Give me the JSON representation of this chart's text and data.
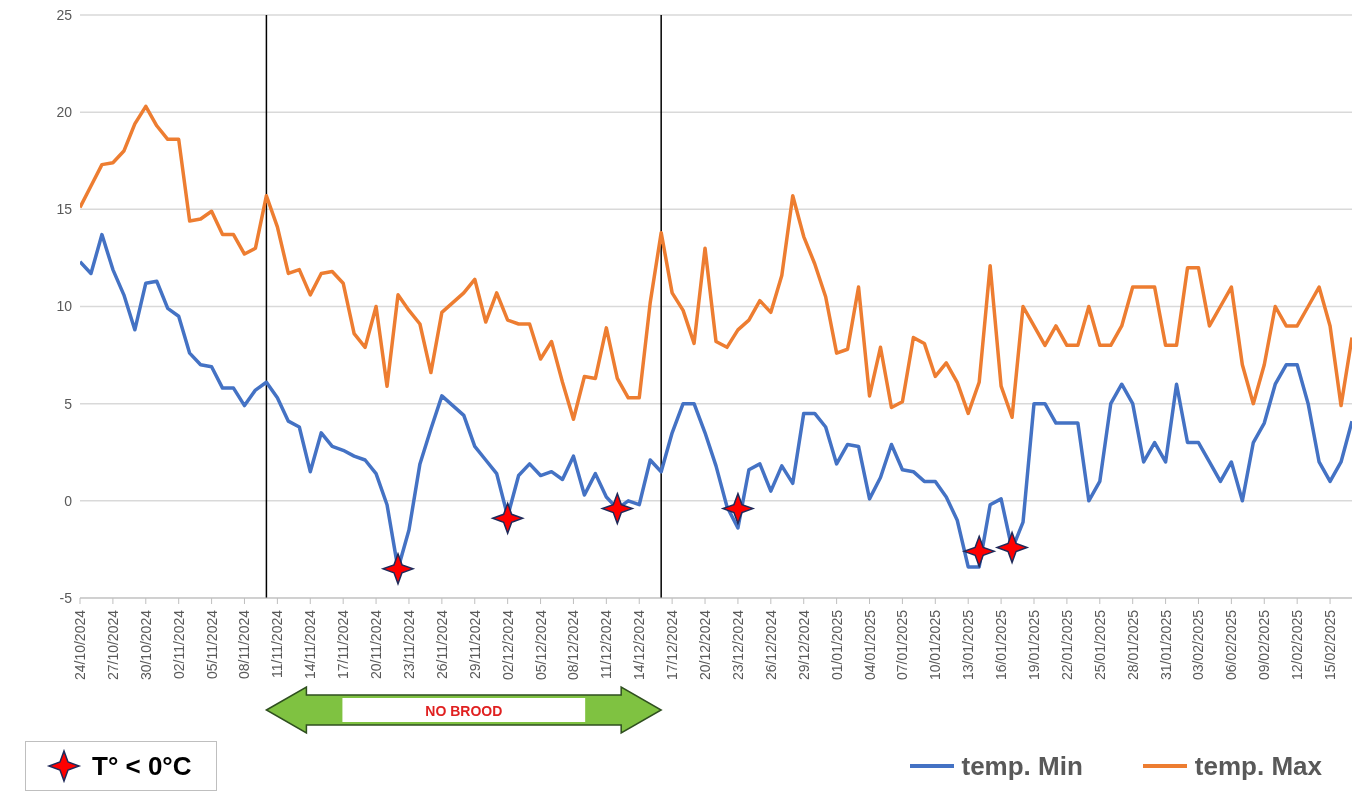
{
  "chart_data": {
    "type": "line",
    "x": [
      "2024-10-24",
      "2024-10-25",
      "2024-10-26",
      "2024-10-27",
      "2024-10-28",
      "2024-10-29",
      "2024-10-30",
      "2024-10-31",
      "2024-11-01",
      "2024-11-02",
      "2024-11-03",
      "2024-11-04",
      "2024-11-05",
      "2024-11-06",
      "2024-11-07",
      "2024-11-08",
      "2024-11-09",
      "2024-11-10",
      "2024-11-11",
      "2024-11-12",
      "2024-11-13",
      "2024-11-14",
      "2024-11-15",
      "2024-11-16",
      "2024-11-17",
      "2024-11-18",
      "2024-11-19",
      "2024-11-20",
      "2024-11-21",
      "2024-11-22",
      "2024-11-23",
      "2024-11-24",
      "2024-11-25",
      "2024-11-26",
      "2024-11-27",
      "2024-11-28",
      "2024-11-29",
      "2024-11-30",
      "2024-12-01",
      "2024-12-02",
      "2024-12-03",
      "2024-12-04",
      "2024-12-05",
      "2024-12-06",
      "2024-12-07",
      "2024-12-08",
      "2024-12-09",
      "2024-12-10",
      "2024-12-11",
      "2024-12-12",
      "2024-12-13",
      "2024-12-14",
      "2024-12-15",
      "2024-12-16",
      "2024-12-17",
      "2024-12-18",
      "2024-12-19",
      "2024-12-20",
      "2024-12-21",
      "2024-12-22",
      "2024-12-23",
      "2024-12-24",
      "2024-12-25",
      "2024-12-26",
      "2024-12-27",
      "2024-12-28",
      "2024-12-29",
      "2024-12-30",
      "2024-12-31",
      "2025-01-01",
      "2025-01-02",
      "2025-01-03",
      "2025-01-04",
      "2025-01-05",
      "2025-01-06",
      "2025-01-07",
      "2025-01-08",
      "2025-01-09",
      "2025-01-10",
      "2025-01-11",
      "2025-01-12",
      "2025-01-13",
      "2025-01-14",
      "2025-01-15",
      "2025-01-16",
      "2025-01-17",
      "2025-01-18",
      "2025-01-19",
      "2025-01-20",
      "2025-01-21",
      "2025-01-22",
      "2025-01-23",
      "2025-01-24",
      "2025-01-25",
      "2025-01-26",
      "2025-01-27",
      "2025-01-28",
      "2025-01-29",
      "2025-01-30",
      "2025-01-31",
      "2025-02-01",
      "2025-02-02",
      "2025-02-03",
      "2025-02-04",
      "2025-02-05",
      "2025-02-06",
      "2025-02-07",
      "2025-02-08",
      "2025-02-09",
      "2025-02-10",
      "2025-02-11",
      "2025-02-12",
      "2025-02-13",
      "2025-02-14",
      "2025-02-15",
      "2025-02-16",
      "2025-02-17"
    ],
    "series": [
      {
        "name": "temp. Min",
        "color": "#4472c4",
        "values": [
          12.3,
          11.7,
          13.7,
          11.9,
          10.6,
          8.8,
          11.2,
          11.3,
          9.9,
          9.5,
          7.6,
          7.0,
          6.9,
          5.8,
          5.8,
          4.9,
          5.7,
          6.1,
          5.3,
          4.1,
          3.8,
          1.5,
          3.5,
          2.8,
          2.6,
          2.3,
          2.1,
          1.4,
          -0.2,
          -3.5,
          -1.5,
          1.9,
          3.7,
          5.4,
          4.9,
          4.4,
          2.8,
          2.1,
          1.4,
          -0.8,
          1.3,
          1.9,
          1.3,
          1.5,
          1.1,
          2.3,
          0.3,
          1.4,
          0.2,
          -0.4,
          0.0,
          -0.2,
          2.1,
          1.5,
          3.5,
          5.0,
          5.0,
          3.5,
          1.8,
          -0.3,
          -1.4,
          1.6,
          1.9,
          0.5,
          1.8,
          0.9,
          4.5,
          4.5,
          3.8,
          1.9,
          2.9,
          2.8,
          0.1,
          1.2,
          2.9,
          1.6,
          1.5,
          1.0,
          1.0,
          0.2,
          -1.0,
          -3.4,
          -3.4,
          -0.2,
          0.1,
          -2.5,
          -1.1,
          5,
          5,
          4,
          4,
          4,
          0,
          1,
          5,
          6,
          5,
          2,
          3,
          2,
          6,
          3,
          3,
          2,
          1,
          2,
          0,
          3,
          4,
          6,
          7,
          7,
          5,
          2,
          1,
          2,
          4.1
        ]
      },
      {
        "name": "temp. Max",
        "color": "#ed7d31",
        "values": [
          15.1,
          16.2,
          17.3,
          17.4,
          18.0,
          19.4,
          20.3,
          19.3,
          18.6,
          18.6,
          14.4,
          14.5,
          14.9,
          13.7,
          13.7,
          12.7,
          13.0,
          15.7,
          14.1,
          11.7,
          11.9,
          10.6,
          11.7,
          11.8,
          11.2,
          8.6,
          7.9,
          10.0,
          5.9,
          10.6,
          9.8,
          9.1,
          6.6,
          9.7,
          10.2,
          10.7,
          11.4,
          9.2,
          10.7,
          9.3,
          9.1,
          9.1,
          7.3,
          8.2,
          6.1,
          4.2,
          6.4,
          6.3,
          8.9,
          6.3,
          5.3,
          5.3,
          10.2,
          13.8,
          10.7,
          9.8,
          8.1,
          13.0,
          8.2,
          7.9,
          8.8,
          9.3,
          10.3,
          9.7,
          11.6,
          15.7,
          13.6,
          12.2,
          10.5,
          7.6,
          7.8,
          11.0,
          5.4,
          7.9,
          4.8,
          5.1,
          8.4,
          8.1,
          6.4,
          7.1,
          6.1,
          4.5,
          6.1,
          12.1,
          5.9,
          4.3,
          10,
          9,
          8,
          9,
          8,
          8,
          10,
          8,
          8,
          9,
          11,
          11,
          11,
          8,
          8,
          12,
          12,
          9,
          10,
          11,
          7,
          5,
          7,
          10,
          9,
          9,
          10,
          11,
          9,
          4.9,
          8.4
        ]
      },
      {
        "name": "T° < 0°C",
        "type": "scatter",
        "marker": "star",
        "color": "#ff0000",
        "x": [
          "2024-11-22",
          "2024-12-02",
          "2024-12-12",
          "2024-12-23",
          "2025-01-14",
          "2025-01-17"
        ],
        "values": [
          -3.5,
          -0.9,
          -0.4,
          -0.4,
          -2.6,
          -2.4
        ]
      }
    ],
    "marker": "none",
    "xlim": [
      "2024-10-24",
      "2025-02-17"
    ],
    "xticks": [
      {
        "value": "2024-10-24",
        "label": "24/10/2024"
      },
      {
        "value": "2024-10-27",
        "label": "27/10/2024"
      },
      {
        "value": "2024-10-30",
        "label": "30/10/2024"
      },
      {
        "value": "2024-11-02",
        "label": "02/11/2024"
      },
      {
        "value": "2024-11-05",
        "label": "05/11/2024"
      },
      {
        "value": "2024-11-08",
        "label": "08/11/2024"
      },
      {
        "value": "2024-11-11",
        "label": "11/11/2024"
      },
      {
        "value": "2024-11-14",
        "label": "14/11/2024"
      },
      {
        "value": "2024-11-17",
        "label": "17/11/2024"
      },
      {
        "value": "2024-11-20",
        "label": "20/11/2024"
      },
      {
        "value": "2024-11-23",
        "label": "23/11/2024"
      },
      {
        "value": "2024-11-26",
        "label": "26/11/2024"
      },
      {
        "value": "2024-11-29",
        "label": "29/11/2024"
      },
      {
        "value": "2024-12-02",
        "label": "02/12/2024"
      },
      {
        "value": "2024-12-05",
        "label": "05/12/2024"
      },
      {
        "value": "2024-12-08",
        "label": "08/12/2024"
      },
      {
        "value": "2024-12-11",
        "label": "11/12/2024"
      },
      {
        "value": "2024-12-14",
        "label": "14/12/2024"
      },
      {
        "value": "2024-12-17",
        "label": "17/12/2024"
      },
      {
        "value": "2024-12-20",
        "label": "20/12/2024"
      },
      {
        "value": "2024-12-23",
        "label": "23/12/2024"
      },
      {
        "value": "2024-12-26",
        "label": "26/12/2024"
      },
      {
        "value": "2024-12-29",
        "label": "29/12/2024"
      },
      {
        "value": "2025-01-01",
        "label": "01/01/2025"
      },
      {
        "value": "2025-01-04",
        "label": "04/01/2025"
      },
      {
        "value": "2025-01-07",
        "label": "07/01/2025"
      },
      {
        "value": "2025-01-10",
        "label": "10/01/2025"
      },
      {
        "value": "2025-01-13",
        "label": "13/01/2025"
      },
      {
        "value": "2025-01-16",
        "label": "16/01/2025"
      },
      {
        "value": "2025-01-19",
        "label": "19/01/2025"
      },
      {
        "value": "2025-01-22",
        "label": "22/01/2025"
      },
      {
        "value": "2025-01-25",
        "label": "25/01/2025"
      },
      {
        "value": "2025-01-28",
        "label": "28/01/2025"
      },
      {
        "value": "2025-01-31",
        "label": "31/01/2025"
      },
      {
        "value": "2025-02-03",
        "label": "03/02/2025"
      },
      {
        "value": "2025-02-06",
        "label": "06/02/2025"
      },
      {
        "value": "2025-02-09",
        "label": "09/02/2025"
      },
      {
        "value": "2025-02-12",
        "label": "12/02/2025"
      },
      {
        "value": "2025-02-15",
        "label": "15/02/2025"
      }
    ],
    "ylim": [
      -5,
      25
    ],
    "yticks": [
      -5,
      0,
      5,
      10,
      15,
      20,
      25
    ],
    "grid": "y",
    "ref_lines": [
      {
        "axis": "x",
        "value": "2024-11-10",
        "color": "#000000"
      },
      {
        "axis": "x",
        "value": "2024-12-16",
        "color": "#000000"
      }
    ],
    "annotations": [
      "NO BROOD"
    ],
    "legend": "bottom"
  }
}
